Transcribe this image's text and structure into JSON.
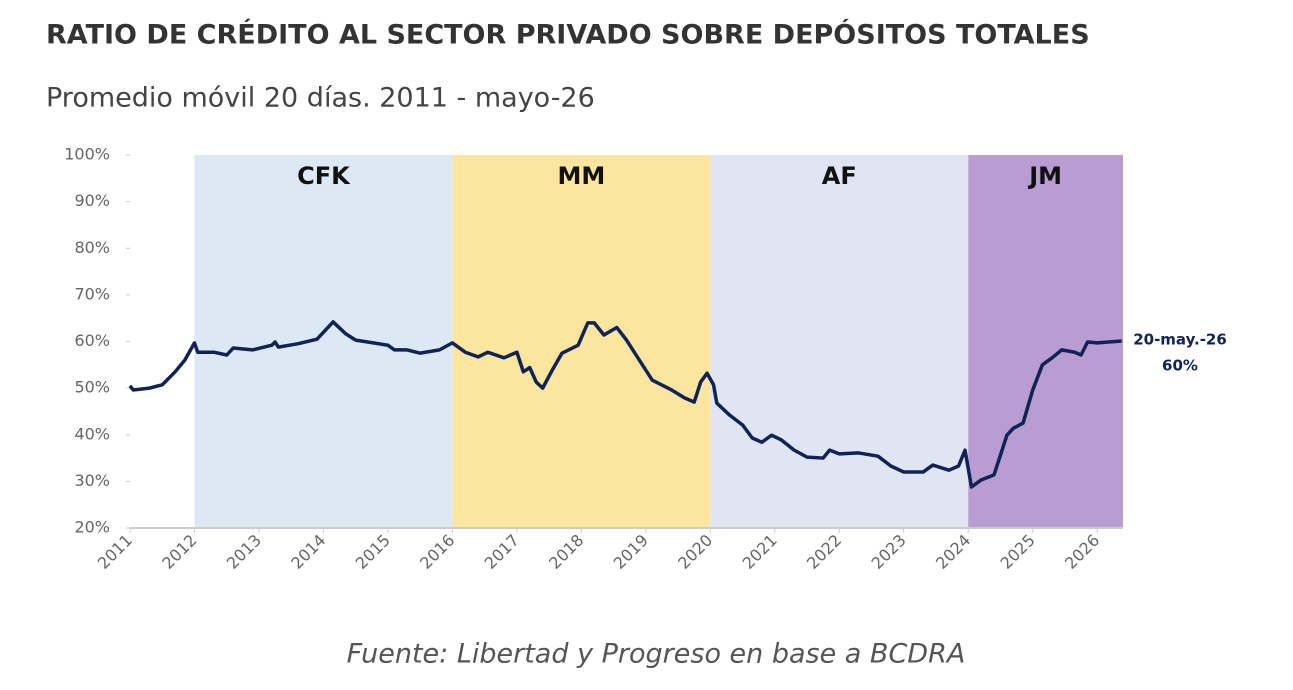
{
  "chart_data": {
    "type": "line",
    "title": "RATIO DE CRÉDITO AL SECTOR PRIVADO SOBRE DEPÓSITOS TOTALES",
    "subtitle": "Promedio móvil 20 días. 2011 - mayo-26",
    "source": "Fuente: Libertad y Progreso en base a BCDRA",
    "annotation": [
      "20-may.-26",
      "60%"
    ],
    "xlim": [
      2011,
      2026.4
    ],
    "xticks": [
      2011,
      2012,
      2013,
      2014,
      2015,
      2016,
      2017,
      2018,
      2019,
      2020,
      2021,
      2022,
      2023,
      2024,
      2025,
      2026
    ],
    "ylim": [
      20,
      100
    ],
    "yticks": [
      {
        "value": 20,
        "label": "20%"
      },
      {
        "value": 30,
        "label": "30%"
      },
      {
        "value": 40,
        "label": "40%"
      },
      {
        "value": 50,
        "label": "50%"
      },
      {
        "value": 60,
        "label": "60%"
      },
      {
        "value": 70,
        "label": "70%"
      },
      {
        "value": 80,
        "label": "80%"
      },
      {
        "value": 90,
        "label": "90%"
      },
      {
        "value": 100,
        "label": "100%"
      }
    ],
    "periods": [
      {
        "name": "CFK",
        "start": 2012,
        "end": 2016,
        "color": "#dde8f5"
      },
      {
        "name": "MM",
        "start": 2016,
        "end": 2020,
        "color": "#fce59f"
      },
      {
        "name": "AF",
        "start": 2020,
        "end": 2024,
        "color": "#dfe5f3"
      },
      {
        "name": "JM",
        "start": 2024,
        "end": 2026.4,
        "color": "#b99cd1"
      }
    ],
    "series": [
      {
        "color": "#0f2356",
        "x": [
          2011.0,
          2011.05,
          2011.3,
          2011.5,
          2011.7,
          2011.85,
          2012.0,
          2012.05,
          2012.3,
          2012.5,
          2012.6,
          2012.9,
          2013.2,
          2013.25,
          2013.3,
          2013.6,
          2013.9,
          2014.15,
          2014.35,
          2014.5,
          2015.0,
          2015.1,
          2015.3,
          2015.5,
          2015.8,
          2016.0,
          2016.2,
          2016.4,
          2016.55,
          2016.8,
          2017.0,
          2017.1,
          2017.2,
          2017.3,
          2017.4,
          2017.55,
          2017.7,
          2017.95,
          2018.1,
          2018.2,
          2018.35,
          2018.55,
          2018.7,
          2018.9,
          2019.1,
          2019.4,
          2019.6,
          2019.75,
          2019.85,
          2019.95,
          2020.05,
          2020.1,
          2020.3,
          2020.5,
          2020.65,
          2020.8,
          2020.95,
          2021.1,
          2021.3,
          2021.5,
          2021.75,
          2021.85,
          2022.0,
          2022.3,
          2022.6,
          2022.8,
          2023.0,
          2023.3,
          2023.45,
          2023.7,
          2023.85,
          2023.95,
          2024.05,
          2024.2,
          2024.4,
          2024.6,
          2024.7,
          2024.85,
          2025.0,
          2025.15,
          2025.3,
          2025.45,
          2025.65,
          2025.75,
          2025.85,
          2026.0,
          2026.38
        ],
        "values": [
          50.5,
          49.6,
          50,
          50.7,
          53.5,
          56,
          59.7,
          57.7,
          57.7,
          57.1,
          58.6,
          58.2,
          59.2,
          59.9,
          58.8,
          59.5,
          60.5,
          64.2,
          61.6,
          60.3,
          59.2,
          58.2,
          58.2,
          57.5,
          58.2,
          59.7,
          57.7,
          56.7,
          57.7,
          56.5,
          57.7,
          53.5,
          54.4,
          51.3,
          50,
          53.9,
          57.5,
          59.2,
          64,
          64,
          61.4,
          63,
          60.3,
          56,
          51.7,
          49.6,
          47.9,
          47,
          51.3,
          53.2,
          50.7,
          46.8,
          44.2,
          42.1,
          39.3,
          38.4,
          39.9,
          38.9,
          36.7,
          35.2,
          35,
          36.7,
          35.9,
          36.1,
          35.4,
          33.3,
          32,
          32,
          33.5,
          32.4,
          33.3,
          36.7,
          28.8,
          30.3,
          31.4,
          39.9,
          41.4,
          42.5,
          49.6,
          55,
          56.5,
          58.2,
          57.7,
          57.1,
          59.9,
          59.7,
          60.1
        ]
      }
    ]
  }
}
